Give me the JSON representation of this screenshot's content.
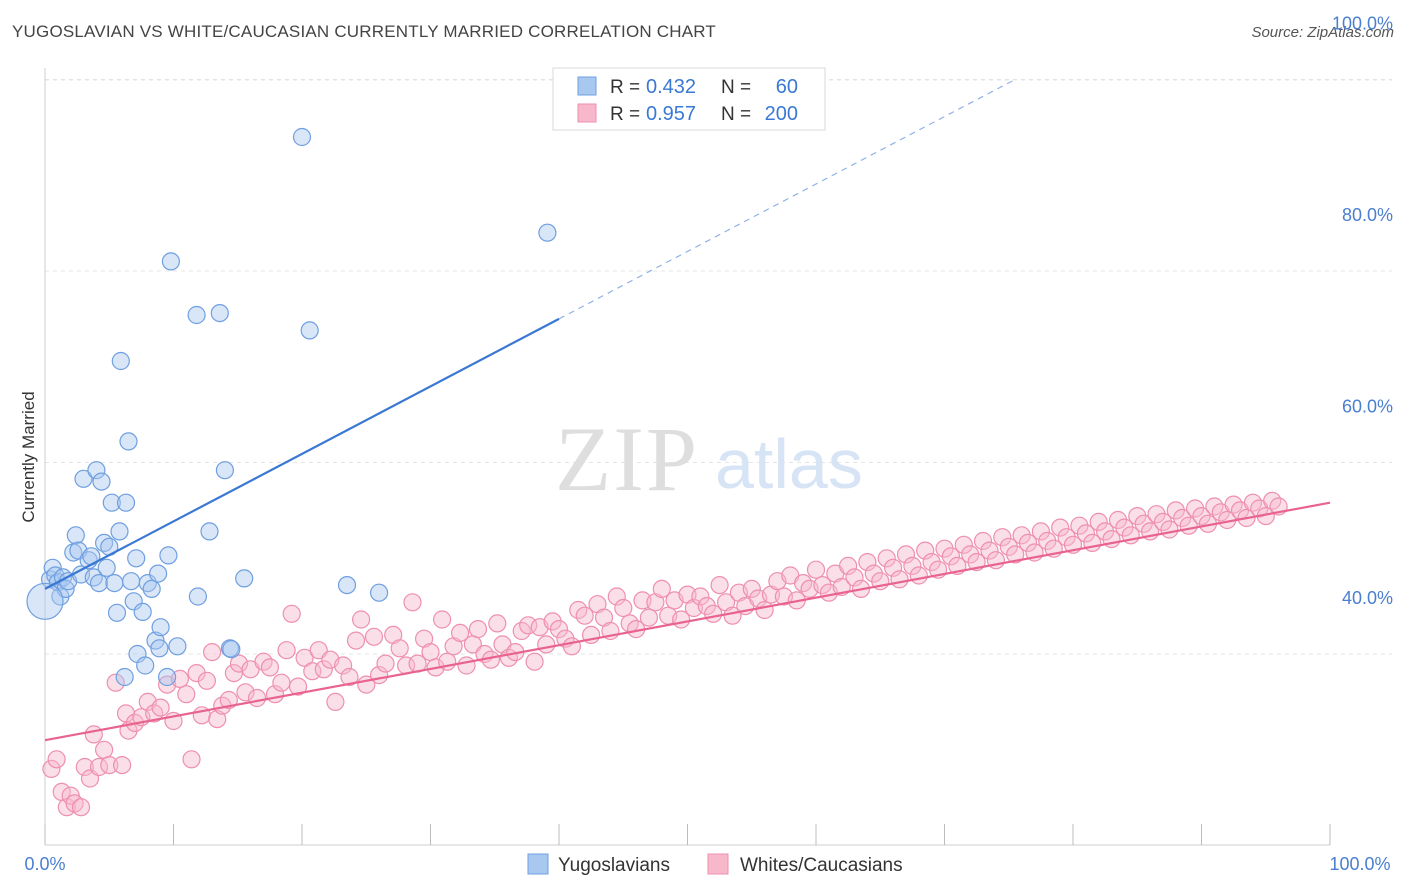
{
  "header": {
    "title": "YUGOSLAVIAN VS WHITE/CAUCASIAN CURRENTLY MARRIED CORRELATION CHART",
    "source": "Source: ZipAtlas.com"
  },
  "watermark": {
    "zip": "ZIP",
    "atlas": "atlas"
  },
  "legend": {
    "r_label": "R =",
    "n_label": "N =",
    "rows": [
      {
        "r": "0.432",
        "n": "60",
        "color": "#a9c8f0"
      },
      {
        "r": "0.957",
        "n": "200",
        "color": "#f7b8cb"
      }
    ]
  },
  "bottom_legend": {
    "items": [
      {
        "label": "Yugoslavians",
        "color": "#a9c8f0"
      },
      {
        "label": "Whites/Caucasians",
        "color": "#f7b8cb"
      }
    ]
  },
  "chart_data": {
    "type": "scatter",
    "title": "YUGOSLAVIAN VS WHITE/CAUCASIAN CURRENTLY MARRIED CORRELATION CHART",
    "xlabel": "",
    "ylabel": "Currently Married",
    "x_tick_labels": [
      "0.0%",
      "100.0%"
    ],
    "y_tick_labels": [
      "40.0%",
      "60.0%",
      "80.0%",
      "100.0%"
    ],
    "y_ticks": [
      40,
      60,
      80,
      100
    ],
    "xlim": [
      0,
      100
    ],
    "ylim": [
      21,
      102
    ],
    "grid": "horizontal dashed",
    "colors": {
      "blue": "#3a78d4",
      "pink": "#e8648f",
      "blue_fill": "#a9c8f0",
      "pink_fill": "#f7b8cb",
      "axis_text": "#4a7fd0"
    },
    "series": [
      {
        "name": "Yugoslavians",
        "r": 0.432,
        "n": 60,
        "trend": {
          "x": [
            0,
            40
          ],
          "y": [
            46.8,
            75.0
          ],
          "dashed_extension_to": [
            75.5,
            100
          ]
        },
        "points": [
          [
            0.4,
            47.8
          ],
          [
            0.6,
            49.0
          ],
          [
            0.8,
            48.2
          ],
          [
            1.0,
            47.5
          ],
          [
            1.2,
            46.0
          ],
          [
            1.4,
            48.0
          ],
          [
            1.6,
            46.8
          ],
          [
            1.8,
            47.6
          ],
          [
            2.2,
            50.6
          ],
          [
            2.4,
            52.4
          ],
          [
            2.6,
            50.8
          ],
          [
            2.8,
            48.3
          ],
          [
            3.0,
            58.3
          ],
          [
            3.4,
            49.8
          ],
          [
            3.6,
            50.2
          ],
          [
            3.8,
            48.0
          ],
          [
            4.0,
            59.2
          ],
          [
            4.2,
            47.4
          ],
          [
            4.4,
            58.0
          ],
          [
            4.6,
            51.6
          ],
          [
            4.8,
            49.0
          ],
          [
            5.0,
            51.2
          ],
          [
            5.2,
            55.8
          ],
          [
            5.4,
            47.4
          ],
          [
            5.6,
            44.3
          ],
          [
            5.8,
            52.8
          ],
          [
            5.9,
            70.6
          ],
          [
            6.2,
            37.6
          ],
          [
            6.3,
            55.8
          ],
          [
            6.5,
            62.2
          ],
          [
            6.7,
            47.6
          ],
          [
            6.9,
            45.5
          ],
          [
            7.1,
            50.0
          ],
          [
            7.2,
            40.0
          ],
          [
            7.6,
            44.4
          ],
          [
            7.8,
            38.8
          ],
          [
            8.0,
            47.4
          ],
          [
            8.3,
            46.8
          ],
          [
            8.6,
            41.4
          ],
          [
            8.8,
            48.4
          ],
          [
            8.9,
            40.6
          ],
          [
            9.0,
            42.8
          ],
          [
            9.5,
            37.6
          ],
          [
            9.6,
            50.3
          ],
          [
            9.8,
            81.0
          ],
          [
            10.3,
            40.8
          ],
          [
            11.8,
            75.4
          ],
          [
            11.9,
            46.0
          ],
          [
            12.8,
            52.8
          ],
          [
            13.6,
            75.6
          ],
          [
            14.0,
            59.2
          ],
          [
            14.4,
            40.6
          ],
          [
            14.5,
            40.5
          ],
          [
            15.5,
            47.9
          ],
          [
            20.0,
            94.0
          ],
          [
            20.6,
            73.8
          ],
          [
            23.5,
            47.2
          ],
          [
            26.0,
            46.4
          ],
          [
            39.1,
            84.0
          ],
          [
            0.0,
            45.5
          ]
        ]
      },
      {
        "name": "Whites/Caucasians",
        "r": 0.957,
        "n": 200,
        "trend": {
          "x": [
            0,
            100
          ],
          "y": [
            31.0,
            55.8
          ]
        },
        "points": [
          [
            0.5,
            28.0
          ],
          [
            0.9,
            29.0
          ],
          [
            1.3,
            25.6
          ],
          [
            1.7,
            24.0
          ],
          [
            2.0,
            25.2
          ],
          [
            2.3,
            24.4
          ],
          [
            2.8,
            24.0
          ],
          [
            3.1,
            28.2
          ],
          [
            3.5,
            27.0
          ],
          [
            3.8,
            31.6
          ],
          [
            4.2,
            28.2
          ],
          [
            4.6,
            30.0
          ],
          [
            5.0,
            28.4
          ],
          [
            5.5,
            37.0
          ],
          [
            6.0,
            28.4
          ],
          [
            6.3,
            33.8
          ],
          [
            6.5,
            32.0
          ],
          [
            7.0,
            32.8
          ],
          [
            7.5,
            33.4
          ],
          [
            8.0,
            35.0
          ],
          [
            8.5,
            33.8
          ],
          [
            9.0,
            34.4
          ],
          [
            9.5,
            36.8
          ],
          [
            10.0,
            33.0
          ],
          [
            10.5,
            37.4
          ],
          [
            11.0,
            35.8
          ],
          [
            11.4,
            29.0
          ],
          [
            11.8,
            38.0
          ],
          [
            12.2,
            33.6
          ],
          [
            12.6,
            37.2
          ],
          [
            13.0,
            40.2
          ],
          [
            13.4,
            33.2
          ],
          [
            13.8,
            34.6
          ],
          [
            14.3,
            35.2
          ],
          [
            14.7,
            38.0
          ],
          [
            15.1,
            39.0
          ],
          [
            15.6,
            36.0
          ],
          [
            16.0,
            38.4
          ],
          [
            16.5,
            35.4
          ],
          [
            17.0,
            39.2
          ],
          [
            17.5,
            38.6
          ],
          [
            17.9,
            35.8
          ],
          [
            18.4,
            37.0
          ],
          [
            18.8,
            40.4
          ],
          [
            19.2,
            44.2
          ],
          [
            19.7,
            36.6
          ],
          [
            20.2,
            39.6
          ],
          [
            20.8,
            38.2
          ],
          [
            21.3,
            40.4
          ],
          [
            21.7,
            38.4
          ],
          [
            22.2,
            39.4
          ],
          [
            22.6,
            35.0
          ],
          [
            23.2,
            38.8
          ],
          [
            23.7,
            37.6
          ],
          [
            24.2,
            41.4
          ],
          [
            24.6,
            43.6
          ],
          [
            25.0,
            36.8
          ],
          [
            25.6,
            41.8
          ],
          [
            26.0,
            37.8
          ],
          [
            26.5,
            39.0
          ],
          [
            27.1,
            42.0
          ],
          [
            27.6,
            40.6
          ],
          [
            28.1,
            38.8
          ],
          [
            28.6,
            45.4
          ],
          [
            29.0,
            39.0
          ],
          [
            29.5,
            41.6
          ],
          [
            30.0,
            40.2
          ],
          [
            30.4,
            38.6
          ],
          [
            30.9,
            43.6
          ],
          [
            31.3,
            39.2
          ],
          [
            31.8,
            40.8
          ],
          [
            32.3,
            42.2
          ],
          [
            32.8,
            38.8
          ],
          [
            33.3,
            41.0
          ],
          [
            33.7,
            42.6
          ],
          [
            34.2,
            40.0
          ],
          [
            34.7,
            39.4
          ],
          [
            35.2,
            43.2
          ],
          [
            35.6,
            41.0
          ],
          [
            36.1,
            39.6
          ],
          [
            36.6,
            40.2
          ],
          [
            37.1,
            42.4
          ],
          [
            37.6,
            43.0
          ],
          [
            38.1,
            39.2
          ],
          [
            38.5,
            42.8
          ],
          [
            39.0,
            41.0
          ],
          [
            39.5,
            43.4
          ],
          [
            40.0,
            42.6
          ],
          [
            40.5,
            41.6
          ],
          [
            41.0,
            40.8
          ],
          [
            41.5,
            44.6
          ],
          [
            42.0,
            44.0
          ],
          [
            42.5,
            42.0
          ],
          [
            43.0,
            45.2
          ],
          [
            43.5,
            43.8
          ],
          [
            44.0,
            42.4
          ],
          [
            44.5,
            46.0
          ],
          [
            45.0,
            44.8
          ],
          [
            45.5,
            43.2
          ],
          [
            46.0,
            42.6
          ],
          [
            46.5,
            45.6
          ],
          [
            47.0,
            43.8
          ],
          [
            47.5,
            45.4
          ],
          [
            48.0,
            46.8
          ],
          [
            48.5,
            44.0
          ],
          [
            49.0,
            45.6
          ],
          [
            49.5,
            43.6
          ],
          [
            50.0,
            46.2
          ],
          [
            50.5,
            44.8
          ],
          [
            51.0,
            46.0
          ],
          [
            51.5,
            45.0
          ],
          [
            52.0,
            44.2
          ],
          [
            52.5,
            47.2
          ],
          [
            53.0,
            45.4
          ],
          [
            53.5,
            44.0
          ],
          [
            54.0,
            46.4
          ],
          [
            54.5,
            45.0
          ],
          [
            55.0,
            46.8
          ],
          [
            55.5,
            45.8
          ],
          [
            56.0,
            44.6
          ],
          [
            56.5,
            46.2
          ],
          [
            57.0,
            47.6
          ],
          [
            57.5,
            46.0
          ],
          [
            58.0,
            48.2
          ],
          [
            58.5,
            45.6
          ],
          [
            59.0,
            47.4
          ],
          [
            59.5,
            46.8
          ],
          [
            60.0,
            48.8
          ],
          [
            60.5,
            47.2
          ],
          [
            61.0,
            46.4
          ],
          [
            61.5,
            48.4
          ],
          [
            62.0,
            47.0
          ],
          [
            62.5,
            49.2
          ],
          [
            63.0,
            48.0
          ],
          [
            63.5,
            46.8
          ],
          [
            64.0,
            49.6
          ],
          [
            64.5,
            48.4
          ],
          [
            65.0,
            47.6
          ],
          [
            65.5,
            50.0
          ],
          [
            66.0,
            49.0
          ],
          [
            66.5,
            47.8
          ],
          [
            67.0,
            50.4
          ],
          [
            67.5,
            49.2
          ],
          [
            68.0,
            48.2
          ],
          [
            68.5,
            50.8
          ],
          [
            69.0,
            49.6
          ],
          [
            69.5,
            48.8
          ],
          [
            70.0,
            51.0
          ],
          [
            70.5,
            50.2
          ],
          [
            71.0,
            49.2
          ],
          [
            71.5,
            51.4
          ],
          [
            72.0,
            50.4
          ],
          [
            72.5,
            49.6
          ],
          [
            73.0,
            51.8
          ],
          [
            73.5,
            50.8
          ],
          [
            74.0,
            49.8
          ],
          [
            74.5,
            52.2
          ],
          [
            75.0,
            51.2
          ],
          [
            75.5,
            50.4
          ],
          [
            76.0,
            52.4
          ],
          [
            76.5,
            51.6
          ],
          [
            77.0,
            50.6
          ],
          [
            77.5,
            52.8
          ],
          [
            78.0,
            51.8
          ],
          [
            78.5,
            51.0
          ],
          [
            79.0,
            53.2
          ],
          [
            79.5,
            52.2
          ],
          [
            80.0,
            51.4
          ],
          [
            80.5,
            53.4
          ],
          [
            81.0,
            52.6
          ],
          [
            81.5,
            51.6
          ],
          [
            82.0,
            53.8
          ],
          [
            82.5,
            52.8
          ],
          [
            83.0,
            52.0
          ],
          [
            83.5,
            54.0
          ],
          [
            84.0,
            53.2
          ],
          [
            84.5,
            52.4
          ],
          [
            85.0,
            54.4
          ],
          [
            85.5,
            53.6
          ],
          [
            86.0,
            52.8
          ],
          [
            86.5,
            54.6
          ],
          [
            87.0,
            53.8
          ],
          [
            87.5,
            53.0
          ],
          [
            88.0,
            55.0
          ],
          [
            88.5,
            54.2
          ],
          [
            89.0,
            53.4
          ],
          [
            89.5,
            55.2
          ],
          [
            90.0,
            54.4
          ],
          [
            90.5,
            53.6
          ],
          [
            91.0,
            55.4
          ],
          [
            91.5,
            54.8
          ],
          [
            92.0,
            54.0
          ],
          [
            92.5,
            55.6
          ],
          [
            93.0,
            55.0
          ],
          [
            93.5,
            54.2
          ],
          [
            94.0,
            55.8
          ],
          [
            94.5,
            55.2
          ],
          [
            95.0,
            54.4
          ],
          [
            95.5,
            56.0
          ],
          [
            96.0,
            55.4
          ]
        ]
      }
    ]
  }
}
